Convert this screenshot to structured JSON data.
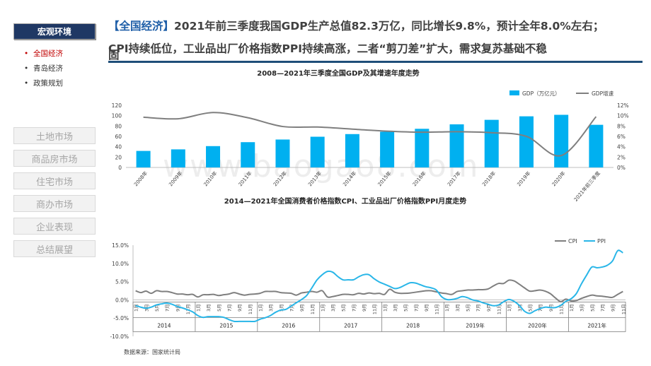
{
  "sidebar": {
    "active_label": "宏观环境",
    "sub_items": [
      "全国经济",
      "青岛经济",
      "政策规划"
    ],
    "nav_items": [
      "土地市场",
      "商品房市场",
      "住宅市场",
      "商办市场",
      "企业表现",
      "总结展望"
    ]
  },
  "headline": {
    "tag": "【全国经济】",
    "line1": "2021年前三季度我国GDP生产总值82.3万亿，同比增长9.8%，预计全年8.0%左右；",
    "line2": "CPI持续低位，工业品出厂价格指数PPI持续高涨，二者“剪刀差”扩大，需求复苏基础不稳",
    "line3": "固"
  },
  "watermark": "www.baogao8.com",
  "source": "数据来源：国家统计局",
  "colors": {
    "bar": "#00b0f0",
    "gdp_line": "#7f7f7f",
    "cpi": "#7f7f7f",
    "ppi": "#29b6e8",
    "nav": "#1f3864"
  },
  "chart_data": [
    {
      "type": "bar",
      "title": "2008—2021年三季度全国GDP及其增速年度走势",
      "categories": [
        "2008年",
        "2009年",
        "2010年",
        "2011年",
        "2012年",
        "2013年",
        "2014年",
        "2015年",
        "2016年",
        "2017年",
        "2018年",
        "2019年",
        "2020年",
        "2021年前三季度"
      ],
      "series": [
        {
          "name": "GDP（万亿元）",
          "kind": "bar",
          "axis": "left",
          "values": [
            31.9,
            34.9,
            41.2,
            48.8,
            53.9,
            59.3,
            64.4,
            68.9,
            74.6,
            83.2,
            91.9,
            98.7,
            101.6,
            82.3
          ]
        },
        {
          "name": "GDP增速",
          "kind": "line",
          "axis": "right",
          "values": [
            9.7,
            9.4,
            10.6,
            9.6,
            7.9,
            7.8,
            7.4,
            7.0,
            6.8,
            6.9,
            6.7,
            6.0,
            2.3,
            9.8
          ]
        }
      ],
      "y_left": {
        "min": 0,
        "max": 120,
        "step": 20,
        "ticks": [
          "0",
          "20",
          "40",
          "60",
          "80",
          "100",
          "120"
        ]
      },
      "y_right": {
        "min": 0,
        "max": 12,
        "step": 2,
        "ticks": [
          "0%",
          "2%",
          "4%",
          "6%",
          "8%",
          "10%",
          "12%"
        ]
      },
      "legend": [
        "GDP（万亿元）",
        "GDP增速"
      ],
      "legend_position": "top-right"
    },
    {
      "type": "line",
      "title": "2014—2021年全国消费者价格指数CPI、工业品出厂价格指数PPI月度走势",
      "y_range": [
        -10,
        15
      ],
      "y_ticks": [
        "-10.0%",
        "-5.0%",
        "0.0%",
        "5.0%",
        "10.0%",
        "15.0%"
      ],
      "years": [
        "2014",
        "2015",
        "2016",
        "2017",
        "2018",
        "2019年",
        "2020年",
        "2021年"
      ],
      "month_labels": [
        "1月",
        "3月",
        "5月",
        "7月",
        "9月",
        "11月"
      ],
      "legend": [
        "CPI",
        "PPI"
      ],
      "legend_position": "top-right",
      "series": [
        {
          "name": "CPI",
          "values": [
            2.5,
            2.0,
            2.4,
            1.8,
            2.5,
            2.3,
            2.3,
            2.0,
            1.6,
            1.6,
            1.4,
            1.5,
            0.8,
            1.4,
            1.4,
            1.5,
            1.2,
            1.4,
            1.6,
            2.0,
            1.6,
            1.3,
            1.5,
            1.6,
            1.8,
            2.3,
            2.3,
            2.3,
            2.0,
            1.9,
            1.8,
            1.3,
            1.9,
            2.1,
            2.3,
            2.1,
            2.5,
            0.8,
            0.9,
            1.2,
            1.5,
            1.5,
            1.4,
            1.8,
            1.6,
            1.9,
            1.7,
            1.8,
            1.5,
            2.9,
            2.1,
            1.8,
            1.8,
            1.9,
            2.1,
            2.3,
            2.5,
            2.5,
            2.2,
            1.9,
            1.7,
            1.5,
            2.3,
            2.5,
            2.7,
            2.7,
            2.8,
            2.8,
            3.0,
            3.8,
            4.5,
            4.5,
            5.4,
            5.2,
            4.3,
            3.3,
            2.4,
            2.5,
            2.7,
            2.4,
            1.7,
            0.5,
            -0.5,
            0.2,
            -0.3,
            -0.2,
            0.4,
            0.9,
            1.3,
            1.1,
            1.0,
            0.8,
            0.7,
            1.5,
            2.3
          ]
        },
        {
          "name": "PPI",
          "values": [
            -1.6,
            -2.0,
            -2.3,
            -2.0,
            -1.4,
            -1.1,
            -0.9,
            -1.2,
            -1.8,
            -2.2,
            -2.7,
            -3.3,
            -4.3,
            -4.8,
            -4.6,
            -4.6,
            -4.6,
            -4.8,
            -5.4,
            -5.9,
            -5.9,
            -5.9,
            -5.9,
            -5.9,
            -5.3,
            -4.9,
            -4.3,
            -3.4,
            -2.8,
            -2.6,
            -1.7,
            -0.8,
            0.1,
            1.2,
            3.3,
            5.5,
            6.9,
            7.8,
            7.6,
            6.4,
            5.5,
            5.5,
            5.5,
            6.3,
            6.9,
            6.9,
            5.8,
            4.9,
            4.3,
            3.7,
            3.1,
            3.4,
            4.1,
            4.7,
            4.6,
            4.1,
            3.6,
            3.3,
            2.7,
            0.9,
            0.1,
            0.1,
            0.4,
            0.9,
            0.6,
            0.0,
            -0.3,
            -0.8,
            -1.2,
            -1.6,
            -1.4,
            -0.5,
            0.1,
            -0.4,
            -1.5,
            -3.1,
            -3.7,
            -3.0,
            -2.4,
            -2.0,
            -2.1,
            -2.1,
            -1.5,
            -0.4,
            0.3,
            1.7,
            4.4,
            6.8,
            9.0,
            8.8,
            9.0,
            9.5,
            10.7,
            13.5,
            12.9
          ]
        }
      ]
    }
  ]
}
